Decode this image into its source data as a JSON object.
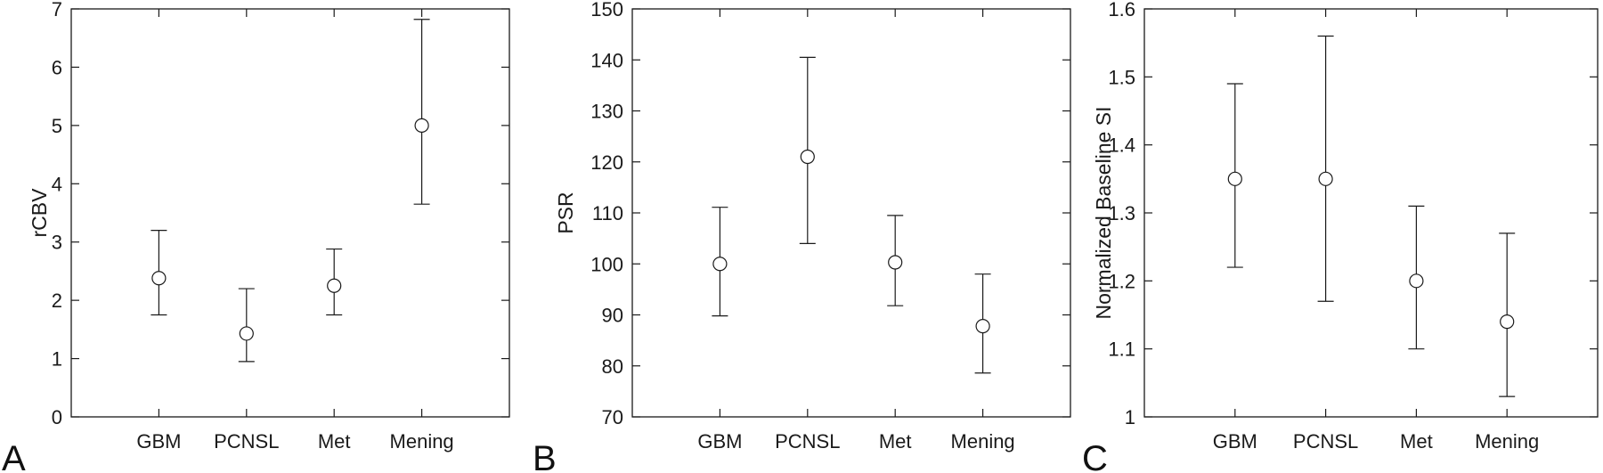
{
  "figure": {
    "colors": {
      "axis": "#1a1a1a",
      "marker": "#1a1a1a",
      "background": "#ffffff"
    }
  },
  "chart_data": [
    {
      "type": "scatter",
      "panel_label": "A",
      "title": "",
      "xlabel": "",
      "ylabel": "rCBV",
      "categories": [
        "GBM",
        "PCNSL",
        "Met",
        "Mening"
      ],
      "values": [
        2.38,
        1.43,
        2.25,
        5.0
      ],
      "lower": [
        1.75,
        0.95,
        1.75,
        3.65
      ],
      "upper": [
        3.2,
        2.2,
        2.88,
        6.82
      ],
      "ylim": [
        0,
        7
      ],
      "yticks": [
        0,
        1,
        2,
        3,
        4,
        5,
        6,
        7
      ],
      "ytick_labels": [
        "0",
        "1",
        "2",
        "3",
        "4",
        "5",
        "6",
        "7"
      ],
      "grid": false,
      "marker": "open-circle"
    },
    {
      "type": "scatter",
      "panel_label": "B",
      "title": "",
      "xlabel": "",
      "ylabel": "PSR",
      "categories": [
        "GBM",
        "PCNSL",
        "Met",
        "Mening"
      ],
      "values": [
        100,
        121,
        100.3,
        87.8
      ],
      "lower": [
        89.8,
        104,
        91.8,
        78.6
      ],
      "upper": [
        111.1,
        140.5,
        109.5,
        98
      ],
      "ylim": [
        70,
        150
      ],
      "yticks": [
        70,
        80,
        90,
        100,
        110,
        120,
        130,
        140,
        150
      ],
      "ytick_labels": [
        "70",
        "80",
        "90",
        "100",
        "110",
        "120",
        "130",
        "140",
        "150"
      ],
      "grid": false,
      "marker": "open-circle"
    },
    {
      "type": "scatter",
      "panel_label": "C",
      "title": "",
      "xlabel": "",
      "ylabel": "Normalized Baseline SI",
      "categories": [
        "GBM",
        "PCNSL",
        "Met",
        "Mening"
      ],
      "values": [
        1.35,
        1.35,
        1.2,
        1.14
      ],
      "lower": [
        1.22,
        1.17,
        1.1,
        1.03
      ],
      "upper": [
        1.49,
        1.56,
        1.31,
        1.27
      ],
      "ylim": [
        1,
        1.6
      ],
      "yticks": [
        1,
        1.1,
        1.2,
        1.3,
        1.4,
        1.5,
        1.6
      ],
      "ytick_labels": [
        "1",
        "1.1",
        "1.2",
        "1.3",
        "1.4",
        "1.5",
        "1.6"
      ],
      "grid": false,
      "marker": "open-circle"
    }
  ]
}
